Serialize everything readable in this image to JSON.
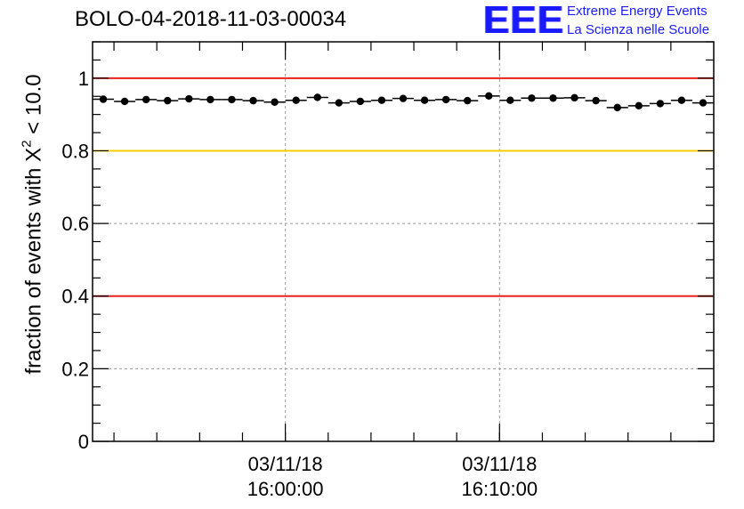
{
  "header": {
    "title": "BOLO-04-2018-11-03-00034",
    "logo_mark": "EEE",
    "logo_line1": "Extreme Energy Events",
    "logo_line2": "La Scienza nelle Scuole"
  },
  "colors": {
    "red_line": "#e8201e",
    "yellow_line": "#ffcc00",
    "logo_blue": "#1a1aff"
  },
  "chart_data": {
    "type": "scatter",
    "title": "BOLO-04-2018-11-03-00034",
    "xlabel": "",
    "ylabel_prefix": "fraction of events with ",
    "ylabel_symbol": "X",
    "ylabel_sup": "2",
    "ylabel_suffix": " < 10.0",
    "x_unit": "minutes since 03/11/18 15:51:00",
    "xlim": [
      0,
      29
    ],
    "ylim": [
      0,
      1.1
    ],
    "yticks": [
      {
        "value": 0,
        "label": "0"
      },
      {
        "value": 0.2,
        "label": "0.2"
      },
      {
        "value": 0.4,
        "label": "0.4"
      },
      {
        "value": 0.6,
        "label": "0.6"
      },
      {
        "value": 0.8,
        "label": "0.8"
      },
      {
        "value": 1.0,
        "label": "1"
      }
    ],
    "xticks": [
      {
        "value": 9,
        "date": "03/11/18",
        "time": "16:00:00"
      },
      {
        "value": 19,
        "date": "03/11/18",
        "time": "16:10:00"
      }
    ],
    "grid": true,
    "reference_lines": [
      {
        "y": 1.0,
        "color": "red"
      },
      {
        "y": 0.8,
        "color": "yellow"
      },
      {
        "y": 0.4,
        "color": "red"
      }
    ],
    "series": [
      {
        "name": "fraction",
        "bin_width": 1,
        "x": [
          0.5,
          1.5,
          2.5,
          3.5,
          4.5,
          5.5,
          6.5,
          7.5,
          8.5,
          9.5,
          10.5,
          11.5,
          12.5,
          13.5,
          14.5,
          15.5,
          16.5,
          17.5,
          18.5,
          19.5,
          20.5,
          21.5,
          22.5,
          23.5,
          24.5,
          25.5,
          26.5,
          27.5,
          28.5
        ],
        "values": [
          0.942,
          0.936,
          0.941,
          0.938,
          0.943,
          0.941,
          0.941,
          0.938,
          0.934,
          0.939,
          0.947,
          0.932,
          0.936,
          0.939,
          0.944,
          0.939,
          0.941,
          0.938,
          0.951,
          0.939,
          0.945,
          0.945,
          0.946,
          0.938,
          0.919,
          0.924,
          0.93,
          0.939,
          0.932
        ]
      }
    ]
  }
}
